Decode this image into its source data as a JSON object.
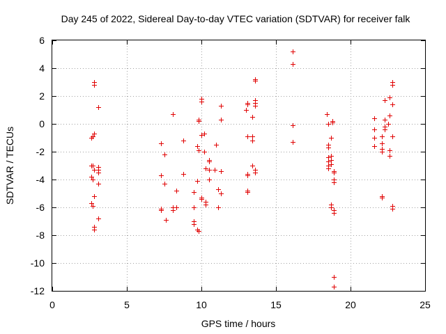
{
  "chart_data": {
    "type": "scatter",
    "title": "Day 245 of 2022, Sidereal Day-to-day VTEC variation (SDTVAR) for receiver falk",
    "xlabel": "GPS time / hours",
    "ylabel": "SDTVAR / TECUs",
    "xlim": [
      0,
      25
    ],
    "ylim": [
      -12,
      6
    ],
    "xticks": [
      0,
      5,
      10,
      15,
      20,
      25
    ],
    "yticks": [
      -12,
      -10,
      -8,
      -6,
      -4,
      -2,
      0,
      2,
      4,
      6
    ],
    "grid": true,
    "marker": "plus",
    "color": "#e00000",
    "series": [
      {
        "name": "SDTVAR",
        "points": [
          [
            2.6,
            -1.0
          ],
          [
            2.7,
            -0.9
          ],
          [
            2.6,
            -3.0
          ],
          [
            2.7,
            -3.0
          ],
          [
            2.6,
            -3.8
          ],
          [
            2.7,
            -4.0
          ],
          [
            2.6,
            -5.7
          ],
          [
            2.7,
            -5.9
          ],
          [
            2.8,
            2.8
          ],
          [
            2.8,
            3.0
          ],
          [
            2.8,
            -0.7
          ],
          [
            2.8,
            -3.3
          ],
          [
            2.8,
            -5.2
          ],
          [
            2.8,
            -7.4
          ],
          [
            2.8,
            -7.6
          ],
          [
            3.1,
            1.2
          ],
          [
            3.1,
            -3.1
          ],
          [
            3.1,
            -3.3
          ],
          [
            3.1,
            -3.5
          ],
          [
            3.1,
            -4.3
          ],
          [
            3.1,
            -6.8
          ],
          [
            7.3,
            -1.4
          ],
          [
            7.3,
            -3.7
          ],
          [
            7.3,
            -6.1
          ],
          [
            7.3,
            -6.2
          ],
          [
            7.5,
            -2.2
          ],
          [
            7.5,
            -4.3
          ],
          [
            7.6,
            -6.9
          ],
          [
            8.1,
            0.7
          ],
          [
            8.1,
            -6.0
          ],
          [
            8.1,
            -6.2
          ],
          [
            8.3,
            -4.8
          ],
          [
            8.3,
            -6.0
          ],
          [
            8.8,
            -1.2
          ],
          [
            8.8,
            -3.6
          ],
          [
            9.5,
            -4.9
          ],
          [
            9.5,
            -6.0
          ],
          [
            9.5,
            -7.0
          ],
          [
            9.5,
            -7.2
          ],
          [
            9.7,
            -1.6
          ],
          [
            9.7,
            -4.1
          ],
          [
            9.7,
            -7.6
          ],
          [
            9.8,
            0.2
          ],
          [
            9.8,
            0.3
          ],
          [
            9.8,
            -1.9
          ],
          [
            9.8,
            -7.7
          ],
          [
            10.0,
            1.6
          ],
          [
            10.0,
            1.8
          ],
          [
            10.0,
            -0.8
          ],
          [
            10.0,
            -5.3
          ],
          [
            10.0,
            -5.4
          ],
          [
            10.2,
            -0.7
          ],
          [
            10.2,
            -2.0
          ],
          [
            10.3,
            -3.2
          ],
          [
            10.3,
            -5.6
          ],
          [
            10.3,
            -5.8
          ],
          [
            10.5,
            -2.6
          ],
          [
            10.5,
            -2.7
          ],
          [
            10.5,
            -3.3
          ],
          [
            10.5,
            -4.0
          ],
          [
            10.9,
            -3.3
          ],
          [
            11.0,
            -1.5
          ],
          [
            11.1,
            -4.7
          ],
          [
            11.1,
            -6.0
          ],
          [
            11.3,
            1.3
          ],
          [
            11.3,
            0.3
          ],
          [
            11.3,
            -3.4
          ],
          [
            11.3,
            -5.0
          ],
          [
            13.0,
            1.0
          ],
          [
            13.1,
            1.4
          ],
          [
            13.1,
            1.5
          ],
          [
            13.1,
            -0.9
          ],
          [
            13.1,
            -3.6
          ],
          [
            13.1,
            -3.7
          ],
          [
            13.1,
            -4.8
          ],
          [
            13.1,
            -4.9
          ],
          [
            13.4,
            0.5
          ],
          [
            13.4,
            -0.9
          ],
          [
            13.4,
            -1.2
          ],
          [
            13.4,
            -3.0
          ],
          [
            13.6,
            3.1
          ],
          [
            13.6,
            3.2
          ],
          [
            13.6,
            1.3
          ],
          [
            13.6,
            1.5
          ],
          [
            13.6,
            1.7
          ],
          [
            13.6,
            -3.3
          ],
          [
            13.6,
            -3.5
          ],
          [
            16.1,
            5.2
          ],
          [
            16.1,
            4.3
          ],
          [
            16.1,
            -0.1
          ],
          [
            16.1,
            -1.3
          ],
          [
            18.4,
            0.7
          ],
          [
            18.5,
            0.0
          ],
          [
            18.5,
            -1.5
          ],
          [
            18.5,
            -1.7
          ],
          [
            18.5,
            -2.4
          ],
          [
            18.5,
            -2.7
          ],
          [
            18.5,
            -3.0
          ],
          [
            18.5,
            -3.2
          ],
          [
            18.7,
            -1.0
          ],
          [
            18.7,
            -2.3
          ],
          [
            18.7,
            -2.6
          ],
          [
            18.7,
            -2.9
          ],
          [
            18.7,
            -5.8
          ],
          [
            18.7,
            -6.0
          ],
          [
            18.8,
            0.1
          ],
          [
            18.8,
            0.2
          ],
          [
            18.9,
            -3.4
          ],
          [
            18.9,
            -3.5
          ],
          [
            18.9,
            -4.0
          ],
          [
            18.9,
            -4.2
          ],
          [
            18.9,
            -6.2
          ],
          [
            18.9,
            -6.4
          ],
          [
            18.9,
            -11.0
          ],
          [
            18.9,
            -11.7
          ],
          [
            21.6,
            0.4
          ],
          [
            21.6,
            -0.4
          ],
          [
            21.6,
            -1.0
          ],
          [
            21.6,
            -1.6
          ],
          [
            22.1,
            -0.9
          ],
          [
            22.1,
            -1.4
          ],
          [
            22.1,
            -1.8
          ],
          [
            22.1,
            -2.0
          ],
          [
            22.1,
            -5.2
          ],
          [
            22.1,
            -5.3
          ],
          [
            22.3,
            1.7
          ],
          [
            22.3,
            0.3
          ],
          [
            22.3,
            -0.2
          ],
          [
            22.3,
            -0.4
          ],
          [
            22.5,
            0.0
          ],
          [
            22.6,
            1.9
          ],
          [
            22.6,
            0.6
          ],
          [
            22.6,
            -1.9
          ],
          [
            22.6,
            -2.3
          ],
          [
            22.8,
            2.8
          ],
          [
            22.8,
            3.0
          ],
          [
            22.8,
            1.4
          ],
          [
            22.8,
            -0.9
          ],
          [
            22.8,
            -5.9
          ],
          [
            22.8,
            -6.1
          ]
        ]
      }
    ]
  }
}
